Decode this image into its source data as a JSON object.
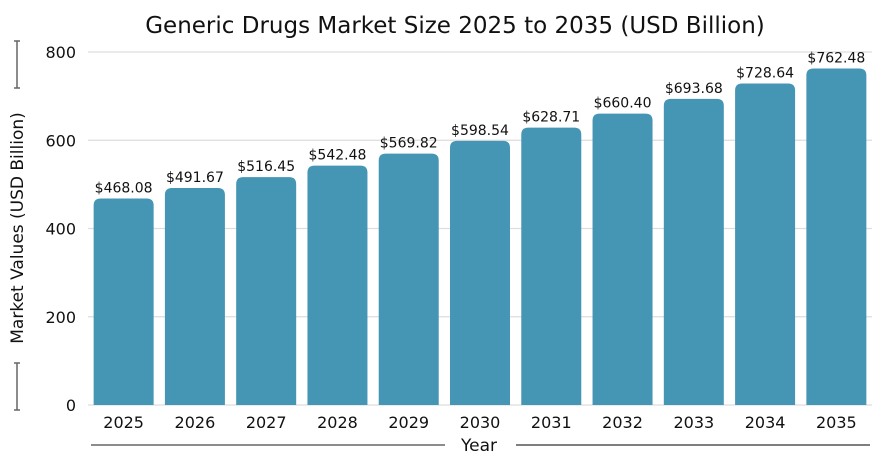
{
  "chart_data": {
    "type": "bar",
    "title": "Generic Drugs Market Size 2025 to 2035 (USD Billion)",
    "xlabel": "Year",
    "ylabel": "Market Values (USD Billion)",
    "ylim": [
      0,
      800
    ],
    "yticks": [
      0,
      200,
      400,
      600,
      800
    ],
    "grid": true,
    "categories": [
      "2025",
      "2026",
      "2027",
      "2028",
      "2029",
      "2030",
      "2031",
      "2032",
      "2033",
      "2034",
      "2035"
    ],
    "values": [
      468.08,
      491.67,
      516.45,
      542.48,
      569.82,
      598.54,
      628.71,
      660.4,
      693.68,
      728.64,
      762.48
    ],
    "data_labels": [
      "$468.08",
      "$491.67",
      "$516.45",
      "$542.48",
      "$569.82",
      "$598.54",
      "$628.71",
      "$660.40",
      "$693.68",
      "$728.64",
      "$762.48"
    ],
    "bar_color": "#4595b5",
    "grid_color": "#dddddd"
  }
}
